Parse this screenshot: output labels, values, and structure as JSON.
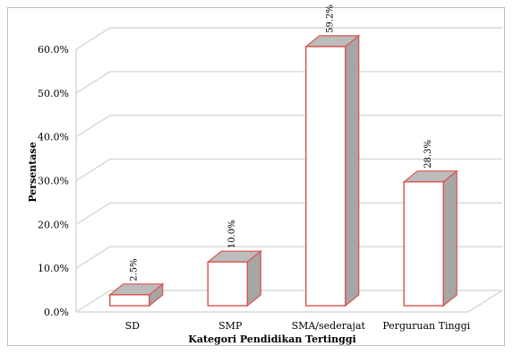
{
  "chart_data": {
    "type": "bar",
    "categories": [
      "SD",
      "SMP",
      "SMA/sederajat",
      "Perguruan Tinggi"
    ],
    "values": [
      2.5,
      10.0,
      59.2,
      28.3
    ],
    "data_labels": [
      "2.5%",
      "10.0%",
      "59.2%",
      "28.3%"
    ],
    "yticks": [
      "0.0%",
      "10.0%",
      "20.0%",
      "30.0%",
      "40.0%",
      "50.0%",
      "60.0%"
    ],
    "ylim": [
      0,
      60
    ],
    "xlabel": "Kategori Pendidikan Tertinggi",
    "ylabel": "Persentase",
    "grid": true,
    "style": "3d-column",
    "colors": {
      "front": "#ffffff",
      "side": "#a6a6a6",
      "top": "#bcbcbc",
      "edge": "#d9534f",
      "grid": "#d9d9d9"
    }
  }
}
